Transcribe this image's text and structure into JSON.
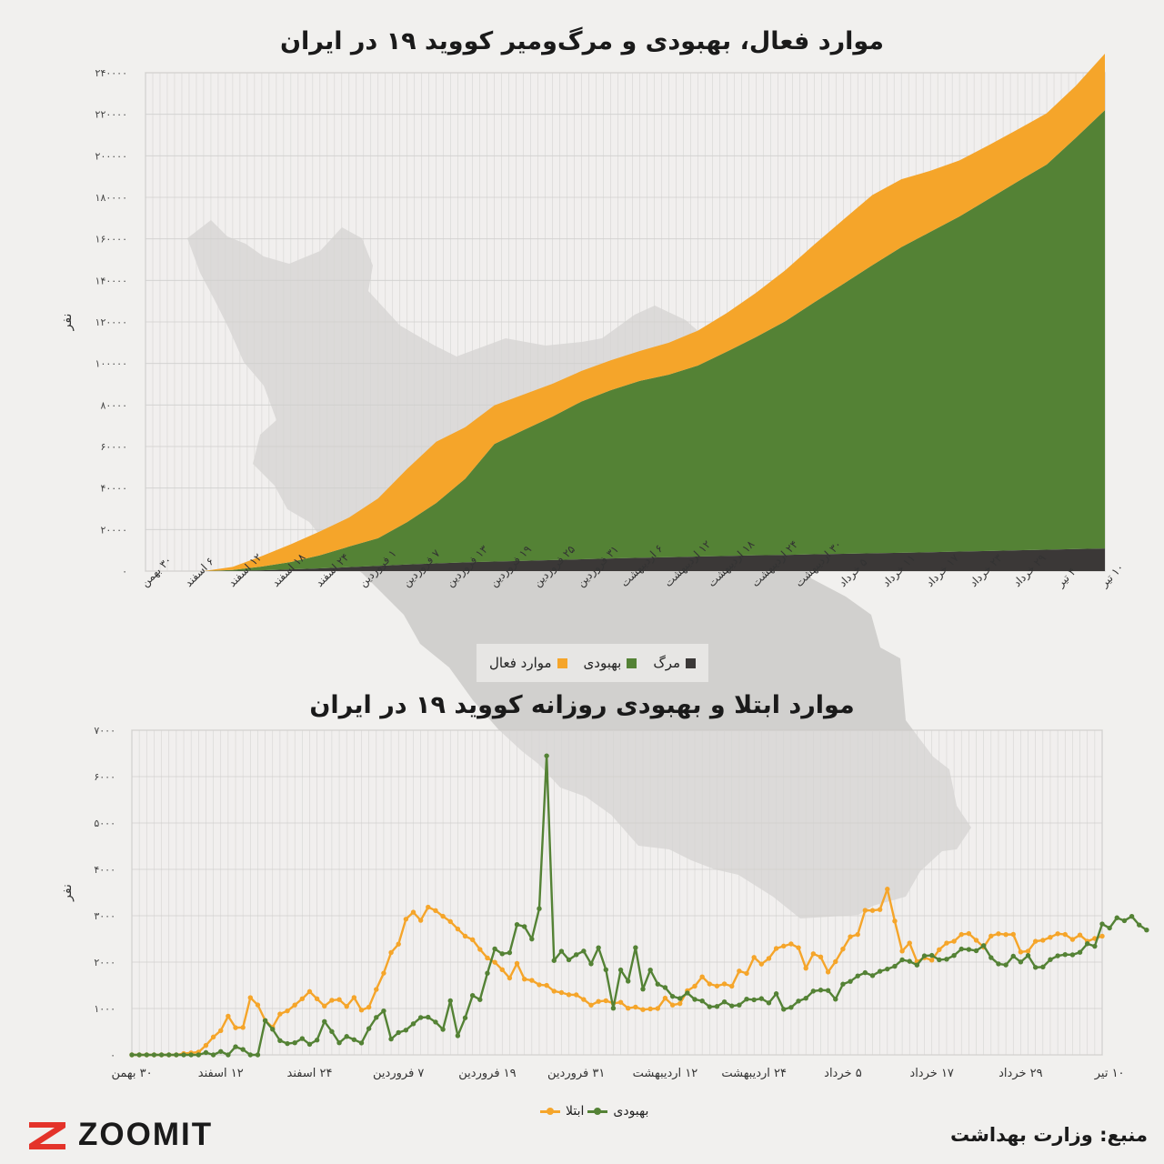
{
  "charts": {
    "chart1": {
      "title": "موارد فعال، بهبودی و مرگ‌ومیر کووید ۱۹ در ایران",
      "legend": [
        {
          "label": "مرگ",
          "color": "#3b3837"
        },
        {
          "label": "بهبودی",
          "color": "#548235"
        },
        {
          "label": "موارد فعال",
          "color": "#f5a52a"
        }
      ]
    },
    "chart2": {
      "title": "موارد ابتلا و بهبودی روزانه کووید ۱۹ در ایران",
      "legend": [
        {
          "label": "بهبودی",
          "color": "#548235"
        },
        {
          "label": "ابتلا",
          "color": "#f5a52a"
        }
      ]
    }
  },
  "brand": {
    "logo_text": "ZOOMIT",
    "logo_color": "#e4332a"
  },
  "source": "منبع: وزارت بهداشت",
  "chart_data": [
    {
      "type": "area",
      "stacked": true,
      "ylabel": "نفر",
      "ylim": [
        0,
        240000
      ],
      "yticks": [
        "۰",
        "۲۰۰۰۰",
        "۴۰۰۰۰",
        "۶۰۰۰۰",
        "۸۰۰۰۰",
        "۱۰۰۰۰۰",
        "۱۲۰۰۰۰",
        "۱۴۰۰۰۰",
        "۱۶۰۰۰۰",
        "۱۸۰۰۰۰",
        "۲۰۰۰۰۰",
        "۲۲۰۰۰۰",
        "۲۴۰۰۰۰"
      ],
      "xticks": [
        "۳۰ بهمن",
        "۶ اسفند",
        "۱۲ اسفند",
        "۱۸ اسفند",
        "۲۴ اسفند",
        "۱ فروردین",
        "۷ فروردین",
        "۱۳ فروردین",
        "۱۹ فروردین",
        "۲۵ فروردین",
        "۳۱ فروردین",
        "۶ اردیبهشت",
        "۱۲ اردیبهشت",
        "۱۸ اردیبهشت",
        "۲۴ اردیبهشت",
        "۳۰ اردیبهشت",
        "۵ خرداد",
        "۱۱ خرداد",
        "۱۷ خرداد",
        "۲۳ خرداد",
        "۲۹ خرداد",
        "۴ تیر",
        "۱۰ تیر"
      ],
      "x_day": [
        0,
        4,
        8,
        12,
        16,
        20,
        24,
        28,
        32,
        36,
        40,
        44,
        48,
        52,
        56,
        60,
        64,
        68,
        72,
        76,
        80,
        84,
        88,
        92,
        96,
        100,
        104,
        108,
        112,
        116,
        120,
        124,
        128,
        132
      ],
      "series": [
        {
          "name": "مرگ",
          "color": "#3b3837",
          "values": [
            0,
            0,
            0,
            150,
            400,
            800,
            1300,
            1900,
            2500,
            3200,
            3700,
            4200,
            4600,
            4900,
            5300,
            5700,
            6100,
            6400,
            6700,
            7000,
            7300,
            7600,
            7800,
            8100,
            8300,
            8600,
            8800,
            9100,
            9400,
            9700,
            10000,
            10300,
            10600,
            10900
          ]
        },
        {
          "name": "بهبودی",
          "color": "#548235",
          "values": [
            0,
            0,
            0,
            400,
            1800,
            3600,
            6300,
            9900,
            13300,
            20400,
            29100,
            40300,
            56600,
            63000,
            69100,
            76000,
            81000,
            85200,
            87900,
            92000,
            98400,
            105100,
            112500,
            121300,
            130000,
            138700,
            147200,
            154300,
            161400,
            169500,
            177600,
            185500,
            198100,
            211100
          ]
        },
        {
          "name": "موارد فعال",
          "color": "#f5a52a",
          "values": [
            0,
            0,
            0,
            1500,
            5000,
            8500,
            11500,
            14000,
            19200,
            25600,
            29500,
            24800,
            18600,
            17100,
            15800,
            14700,
            14400,
            14400,
            15400,
            16800,
            18600,
            21300,
            24500,
            27800,
            30900,
            33800,
            32700,
            29400,
            27000,
            25900,
            25100,
            24700,
            25000,
            27200
          ]
        }
      ],
      "grid": true
    },
    {
      "type": "line",
      "ylabel": "نفر",
      "ylim": [
        0,
        7000
      ],
      "yticks": [
        "۰",
        "۱۰۰۰",
        "۲۰۰۰",
        "۳۰۰۰",
        "۴۰۰۰",
        "۵۰۰۰",
        "۶۰۰۰",
        "۷۰۰۰"
      ],
      "xticks": [
        "۳۰ بهمن",
        "۱۲ اسفند",
        "۲۴ اسفند",
        "۷ فروردین",
        "۱۹ فروردین",
        "۳۱ فروردین",
        "۱۲ اردیبهشت",
        "۲۴ اردیبهشت",
        "۵ خرداد",
        "۱۷ خرداد",
        "۲۹ خرداد",
        "۱۰ تیر"
      ],
      "series": [
        {
          "name": "ابتلا",
          "color": "#f5a52a",
          "values": [
            0,
            0,
            0,
            0,
            0,
            0,
            0,
            28,
            43,
            59,
            205,
            385,
            523,
            835,
            586,
            591,
            1234,
            1076,
            743,
            595,
            881,
            948,
            1075,
            1209,
            1365,
            1209,
            1053,
            1178,
            1192,
            1046,
            1237,
            966,
            1028,
            1411,
            1762,
            2206,
            2389,
            2926,
            3076,
            2901,
            3186,
            3111,
            2988,
            2875,
            2715,
            2560,
            2483,
            2274,
            2089,
            1997,
            1837,
            1657,
            1972,
            1634,
            1606,
            1512,
            1499,
            1374,
            1343,
            1297,
            1294,
            1194,
            1073,
            1153,
            1168,
            1112,
            1134,
            1006,
            1030,
            976,
            991,
            1000,
            1223,
            1075,
            1106,
            1383,
            1481,
            1683,
            1529,
            1485,
            1530,
            1481,
            1808,
            1757,
            2102,
            1958,
            2080,
            2294,
            2346,
            2392,
            2311,
            1869,
            2180,
            2111,
            1787,
            2011,
            2282,
            2548,
            2596,
            3117,
            3114,
            3134,
            3574,
            2886,
            2238,
            2410,
            2011,
            2095,
            2043,
            2269,
            2410,
            2449,
            2596,
            2615,
            2472,
            2322,
            2563,
            2612,
            2595,
            2598,
            2219,
            2237,
            2449,
            2471,
            2536,
            2612,
            2596,
            2489,
            2584,
            2449,
            2510,
            2560
          ]
        },
        {
          "name": "بهبودی",
          "color": "#548235",
          "values": [
            0,
            0,
            0,
            0,
            0,
            0,
            0,
            0,
            0,
            0,
            49,
            0,
            73,
            0,
            175,
            116,
            0,
            0,
            739,
            552,
            308,
            243,
            261,
            352,
            229,
            319,
            719,
            503,
            261,
            397,
            328,
            257,
            566,
            807,
            948,
            341,
            481,
            534,
            670,
            805,
            812,
            708,
            549,
            1167,
            413,
            799,
            1280,
            1191,
            1761,
            2285,
            2180,
            2203,
            2810,
            2766,
            2497,
            3153,
            6448,
            2034,
            2235,
            2050,
            2160,
            2238,
            1963,
            2311,
            1837,
            1006,
            1831,
            1589,
            2312,
            1418,
            1829,
            1525,
            1452,
            1262,
            1216,
            1334,
            1196,
            1163,
            1037,
            1044,
            1143,
            1056,
            1075,
            1202,
            1188,
            1213,
            1121,
            1319,
            984,
            1024,
            1160,
            1221,
            1375,
            1397,
            1389,
            1201,
            1525,
            1585,
            1702,
            1772,
            1709,
            1802,
            1850,
            1910,
            2049,
            2017,
            1937,
            2135,
            2145,
            2050,
            2062,
            2143,
            2282,
            2273,
            2246,
            2356,
            2097,
            1962,
            1939,
            2128,
            2003,
            2142,
            1887,
            1895,
            2054,
            2136,
            2163,
            2158,
            2212,
            2397,
            2342,
            2823,
            2735,
            2956,
            2893,
            2987,
            2801,
            2692
          ]
        }
      ],
      "grid": true
    }
  ]
}
